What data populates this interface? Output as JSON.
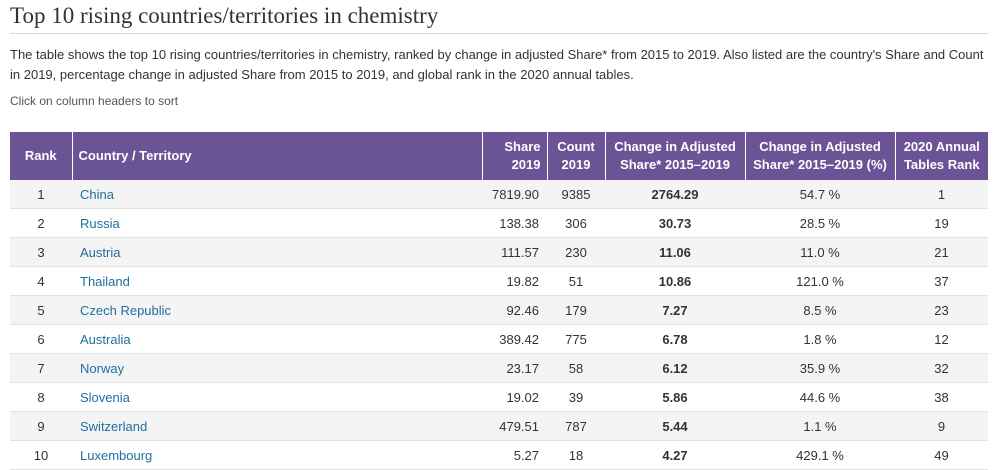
{
  "page": {
    "title": "Top 10 rising countries/territories in chemistry",
    "intro": "The table shows the top 10 rising countries/territories in chemistry, ranked by change in adjusted Share* from 2015 to 2019. Also listed are the country's Share and Count in 2019, percentage change in adjusted Share from 2015 to 2019, and global rank in the 2020 annual tables.",
    "sort_hint": "Click on column headers to sort"
  },
  "colors": {
    "header_bg": "#6b5496",
    "link": "#1f6f9e",
    "row_alt": "#f4f4f4"
  },
  "table": {
    "headers": {
      "rank": "Rank",
      "country": "Country / Territory",
      "share_line1": "Share",
      "share_line2": "2019",
      "count_line1": "Count",
      "count_line2": "2019",
      "change_line1": "Change in Adjusted",
      "change_line2": "Share* 2015–2019",
      "pct_line1": "Change in Adjusted",
      "pct_line2": "Share* 2015–2019 (%)",
      "annual_line1": "2020 Annual",
      "annual_line2": "Tables Rank"
    },
    "rows": [
      {
        "rank": "1",
        "country": "China",
        "share": "7819.90",
        "count": "9385",
        "change": "2764.29",
        "pct": "54.7 %",
        "annual": "1"
      },
      {
        "rank": "2",
        "country": "Russia",
        "share": "138.38",
        "count": "306",
        "change": "30.73",
        "pct": "28.5 %",
        "annual": "19"
      },
      {
        "rank": "3",
        "country": "Austria",
        "share": "111.57",
        "count": "230",
        "change": "11.06",
        "pct": "11.0 %",
        "annual": "21"
      },
      {
        "rank": "4",
        "country": "Thailand",
        "share": "19.82",
        "count": "51",
        "change": "10.86",
        "pct": "121.0 %",
        "annual": "37"
      },
      {
        "rank": "5",
        "country": "Czech Republic",
        "share": "92.46",
        "count": "179",
        "change": "7.27",
        "pct": "8.5 %",
        "annual": "23"
      },
      {
        "rank": "6",
        "country": "Australia",
        "share": "389.42",
        "count": "775",
        "change": "6.78",
        "pct": "1.8 %",
        "annual": "12"
      },
      {
        "rank": "7",
        "country": "Norway",
        "share": "23.17",
        "count": "58",
        "change": "6.12",
        "pct": "35.9 %",
        "annual": "32"
      },
      {
        "rank": "8",
        "country": "Slovenia",
        "share": "19.02",
        "count": "39",
        "change": "5.86",
        "pct": "44.6 %",
        "annual": "38"
      },
      {
        "rank": "9",
        "country": "Switzerland",
        "share": "479.51",
        "count": "787",
        "change": "5.44",
        "pct": "1.1 %",
        "annual": "9"
      },
      {
        "rank": "10",
        "country": "Luxembourg",
        "share": "5.27",
        "count": "18",
        "change": "4.27",
        "pct": "429.1 %",
        "annual": "49"
      }
    ]
  }
}
